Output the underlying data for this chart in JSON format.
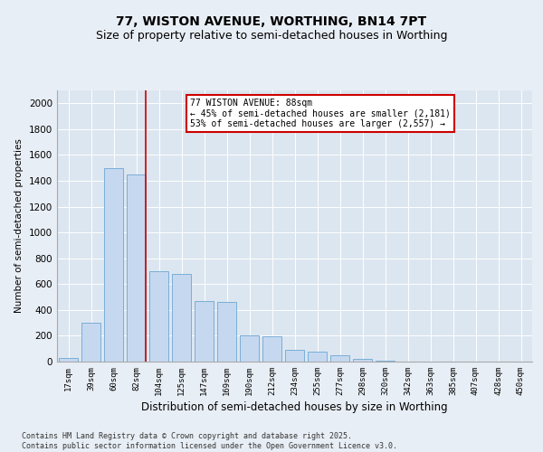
{
  "title_line1": "77, WISTON AVENUE, WORTHING, BN14 7PT",
  "title_line2": "Size of property relative to semi-detached houses in Worthing",
  "xlabel": "Distribution of semi-detached houses by size in Worthing",
  "ylabel": "Number of semi-detached properties",
  "categories": [
    "17sqm",
    "39sqm",
    "60sqm",
    "82sqm",
    "104sqm",
    "125sqm",
    "147sqm",
    "169sqm",
    "190sqm",
    "212sqm",
    "234sqm",
    "255sqm",
    "277sqm",
    "298sqm",
    "320sqm",
    "342sqm",
    "363sqm",
    "385sqm",
    "407sqm",
    "428sqm",
    "450sqm"
  ],
  "values": [
    30,
    300,
    1500,
    1450,
    700,
    680,
    470,
    460,
    200,
    195,
    90,
    75,
    50,
    20,
    5,
    2,
    1,
    1,
    0,
    0,
    0
  ],
  "bar_color": "#c5d8f0",
  "bar_edge_color": "#7aaed6",
  "vline_x_index": 3,
  "vline_color": "#cc0000",
  "annotation_text": "77 WISTON AVENUE: 88sqm\n← 45% of semi-detached houses are smaller (2,181)\n53% of semi-detached houses are larger (2,557) →",
  "ylim": [
    0,
    2100
  ],
  "yticks": [
    0,
    200,
    400,
    600,
    800,
    1000,
    1200,
    1400,
    1600,
    1800,
    2000
  ],
  "bg_color": "#e8eef5",
  "plot_bg_color": "#dce6f0",
  "footer_text": "Contains HM Land Registry data © Crown copyright and database right 2025.\nContains public sector information licensed under the Open Government Licence v3.0.",
  "title_fontsize": 10,
  "subtitle_fontsize": 9,
  "annotation_fontsize": 7,
  "annotation_box_color": "#cc0000",
  "grid_color": "#ffffff"
}
